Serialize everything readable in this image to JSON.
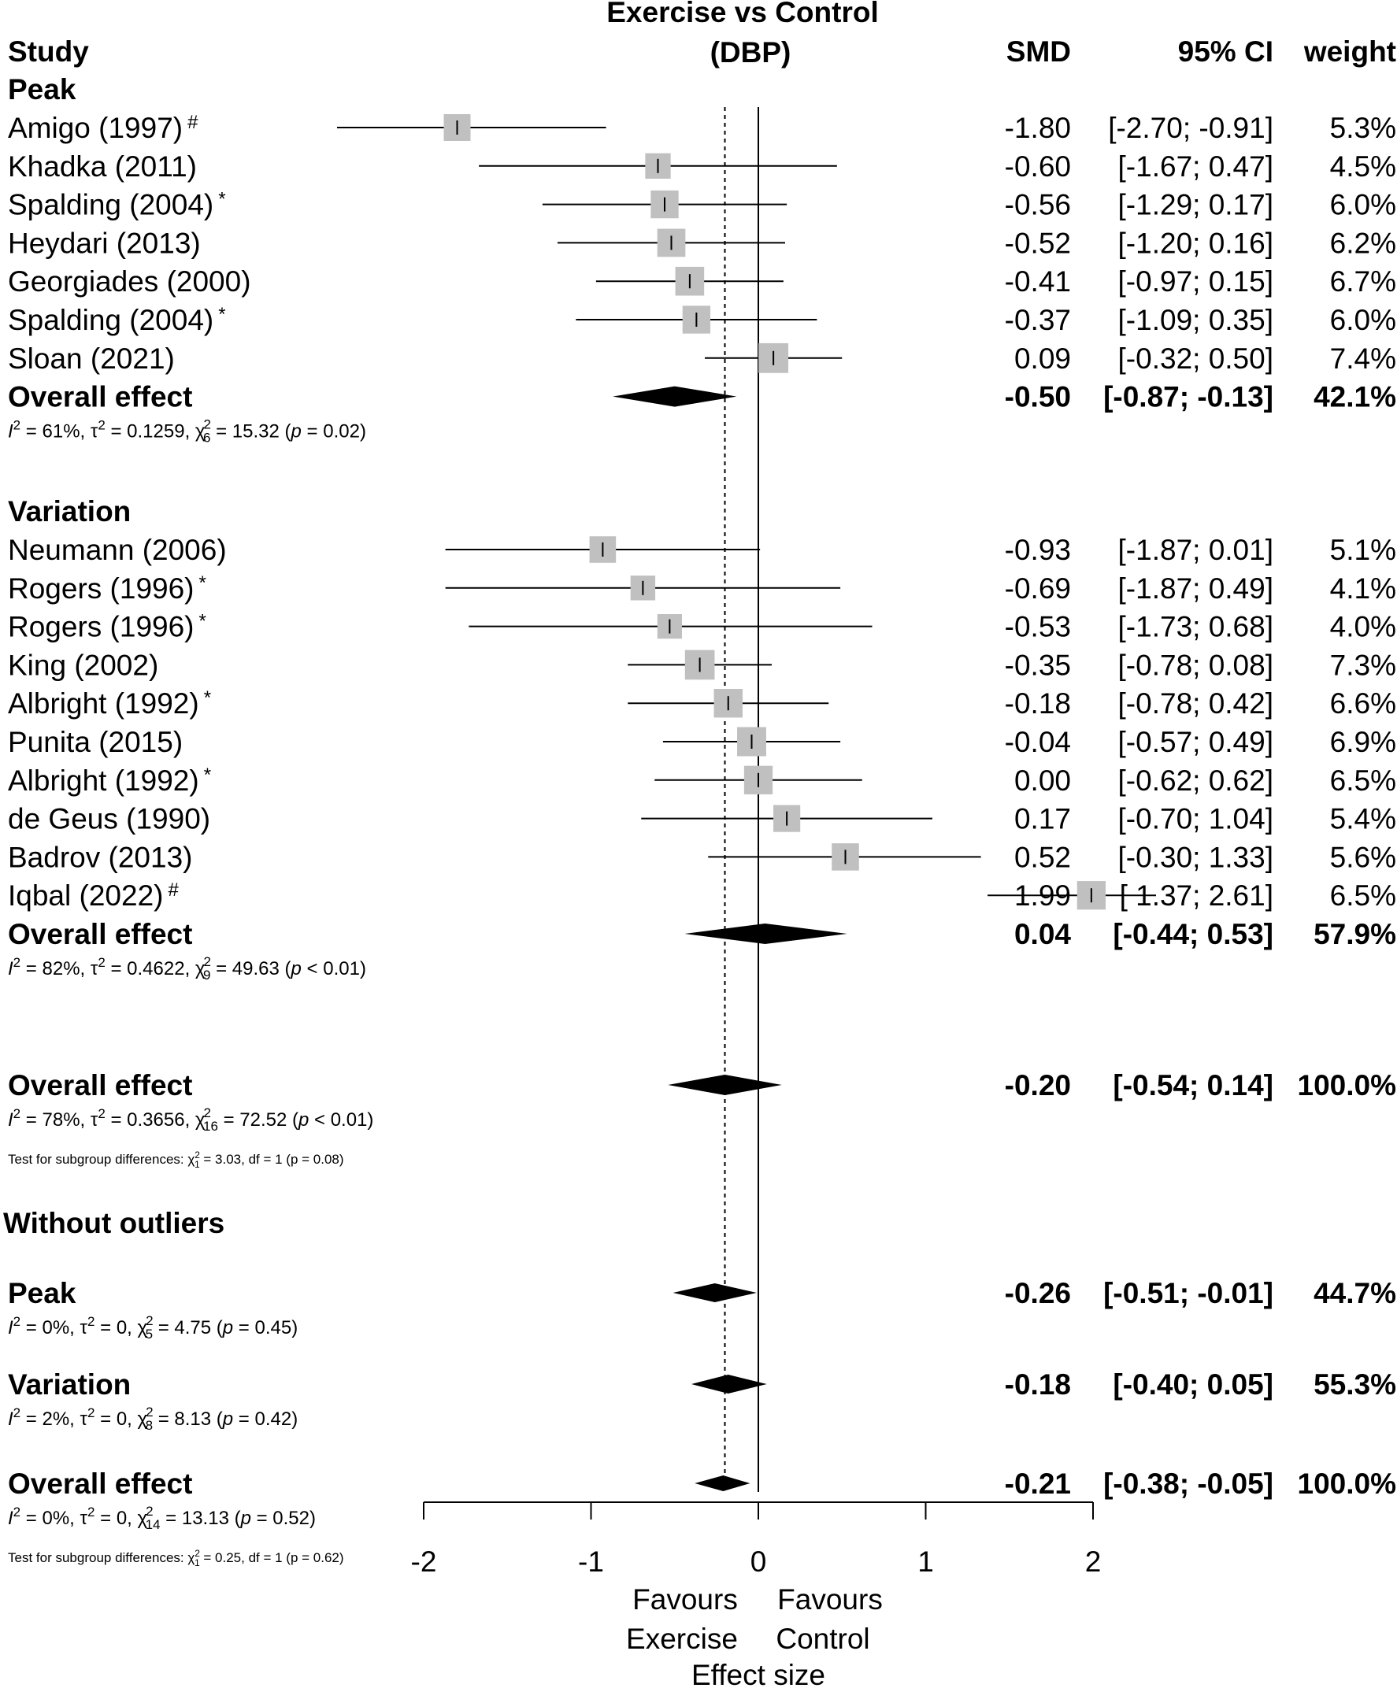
{
  "chart_data": {
    "type": "forest",
    "title": "Exercise vs Control (DBP)",
    "title_lines": [
      "Exercise vs Control",
      "(DBP)"
    ],
    "columns": {
      "study": "Study",
      "smd": "SMD",
      "ci": "95% CI",
      "weight": "weight"
    },
    "xlim": [
      -2,
      2
    ],
    "xticks": [
      "-2",
      "-1",
      "0",
      "1",
      "2"
    ],
    "xlabel": "Effect size",
    "favours_left": [
      "Favours",
      "Exercise"
    ],
    "favours_right": [
      "Favours",
      "Control"
    ],
    "reference_line": -0.2,
    "groups": [
      {
        "label": "Peak",
        "studies": [
          {
            "name": "Amigo (1997)",
            "mark": "#",
            "smd": -1.8,
            "lo": -2.7,
            "hi": -0.91,
            "smd_text": "-1.80",
            "ci_text": "[-2.70; -0.91]",
            "weight_text": "5.3%",
            "weight": 5.3
          },
          {
            "name": "Khadka (2011)",
            "mark": "",
            "smd": -0.6,
            "lo": -1.67,
            "hi": 0.47,
            "smd_text": "-0.60",
            "ci_text": "[-1.67; 0.47]",
            "weight_text": "4.5%",
            "weight": 4.5
          },
          {
            "name": "Spalding (2004)",
            "mark": "*",
            "smd": -0.56,
            "lo": -1.29,
            "hi": 0.17,
            "smd_text": "-0.56",
            "ci_text": "[-1.29; 0.17]",
            "weight_text": "6.0%",
            "weight": 6.0
          },
          {
            "name": "Heydari (2013)",
            "mark": "",
            "smd": -0.52,
            "lo": -1.2,
            "hi": 0.16,
            "smd_text": "-0.52",
            "ci_text": "[-1.20; 0.16]",
            "weight_text": "6.2%",
            "weight": 6.2
          },
          {
            "name": "Georgiades (2000)",
            "mark": "",
            "smd": -0.41,
            "lo": -0.97,
            "hi": 0.15,
            "smd_text": "-0.41",
            "ci_text": "[-0.97; 0.15]",
            "weight_text": "6.7%",
            "weight": 6.7
          },
          {
            "name": "Spalding (2004)",
            "mark": "*",
            "smd": -0.37,
            "lo": -1.09,
            "hi": 0.35,
            "smd_text": "-0.37",
            "ci_text": "[-1.09; 0.35]",
            "weight_text": "6.0%",
            "weight": 6.0
          },
          {
            "name": "Sloan (2021)",
            "mark": "",
            "smd": 0.09,
            "lo": -0.32,
            "hi": 0.5,
            "smd_text": "0.09",
            "ci_text": "[-0.32; 0.50]",
            "weight_text": "7.4%",
            "weight": 7.4
          }
        ],
        "overall": {
          "label": "Overall effect",
          "smd": -0.5,
          "lo": -0.87,
          "hi": -0.13,
          "smd_text": "-0.50",
          "ci_text": "[-0.87; -0.13]",
          "weight_text": "42.1%"
        },
        "heterogeneity": {
          "i2": "61%",
          "tau2": "0.1259",
          "chi_df": "6",
          "chi": "15.32",
          "p": "0.02",
          "p_op": "="
        }
      },
      {
        "label": "Variation",
        "studies": [
          {
            "name": "Neumann (2006)",
            "mark": "",
            "smd": -0.93,
            "lo": -1.87,
            "hi": 0.01,
            "smd_text": "-0.93",
            "ci_text": "[-1.87; 0.01]",
            "weight_text": "5.1%",
            "weight": 5.1
          },
          {
            "name": "Rogers (1996)",
            "mark": "*",
            "smd": -0.69,
            "lo": -1.87,
            "hi": 0.49,
            "smd_text": "-0.69",
            "ci_text": "[-1.87; 0.49]",
            "weight_text": "4.1%",
            "weight": 4.1
          },
          {
            "name": "Rogers (1996)",
            "mark": "*",
            "smd": -0.53,
            "lo": -1.73,
            "hi": 0.68,
            "smd_text": "-0.53",
            "ci_text": "[-1.73; 0.68]",
            "weight_text": "4.0%",
            "weight": 4.0
          },
          {
            "name": "King (2002)",
            "mark": "",
            "smd": -0.35,
            "lo": -0.78,
            "hi": 0.08,
            "smd_text": "-0.35",
            "ci_text": "[-0.78; 0.08]",
            "weight_text": "7.3%",
            "weight": 7.3
          },
          {
            "name": "Albright  (1992)",
            "mark": "*",
            "smd": -0.18,
            "lo": -0.78,
            "hi": 0.42,
            "smd_text": "-0.18",
            "ci_text": "[-0.78; 0.42]",
            "weight_text": "6.6%",
            "weight": 6.6
          },
          {
            "name": "Punita (2015)",
            "mark": "",
            "smd": -0.04,
            "lo": -0.57,
            "hi": 0.49,
            "smd_text": "-0.04",
            "ci_text": "[-0.57; 0.49]",
            "weight_text": "6.9%",
            "weight": 6.9
          },
          {
            "name": "Albright (1992)",
            "mark": "*",
            "smd": 0.0,
            "lo": -0.62,
            "hi": 0.62,
            "smd_text": "0.00",
            "ci_text": "[-0.62; 0.62]",
            "weight_text": "6.5%",
            "weight": 6.5
          },
          {
            "name": "de Geus (1990)",
            "mark": "",
            "smd": 0.17,
            "lo": -0.7,
            "hi": 1.04,
            "smd_text": "0.17",
            "ci_text": "[-0.70; 1.04]",
            "weight_text": "5.4%",
            "weight": 5.4
          },
          {
            "name": "Badrov (2013)",
            "mark": "",
            "smd": 0.52,
            "lo": -0.3,
            "hi": 1.33,
            "smd_text": "0.52",
            "ci_text": "[-0.30; 1.33]",
            "weight_text": "5.6%",
            "weight": 5.6
          },
          {
            "name": "Iqbal (2022)",
            "mark": "#",
            "smd": 1.99,
            "lo": 1.37,
            "hi": 2.61,
            "smd_text": "1.99",
            "ci_text": "[ 1.37; 2.61]",
            "weight_text": "6.5%",
            "weight": 6.5
          }
        ],
        "overall": {
          "label": "Overall effect",
          "smd": 0.04,
          "lo": -0.44,
          "hi": 0.53,
          "smd_text": "0.04",
          "ci_text": "[-0.44; 0.53]",
          "weight_text": "57.9%"
        },
        "heterogeneity": {
          "i2": "82%",
          "tau2": "0.4622",
          "chi_df": "9",
          "chi": "49.63",
          "p": "0.01",
          "p_op": "<"
        }
      }
    ],
    "overall": {
      "label": "Overall effect",
      "smd": -0.2,
      "lo": -0.54,
      "hi": 0.14,
      "smd_text": "-0.20",
      "ci_text": "[-0.54; 0.14]",
      "weight_text": "100.0%",
      "heterogeneity": {
        "i2": "78%",
        "tau2": "0.3656",
        "chi_df": "16",
        "chi": "72.52",
        "p": "0.01",
        "p_op": "<"
      },
      "subgroup_test": {
        "chi_df": "1",
        "chi": "3.03",
        "df": "1",
        "p": "0.08",
        "p_op": "="
      }
    },
    "without_outliers": {
      "label": "Without outliers",
      "groups": [
        {
          "label": "Peak",
          "smd": -0.26,
          "lo": -0.51,
          "hi": -0.01,
          "smd_text": "-0.26",
          "ci_text": "[-0.51; -0.01]",
          "weight_text": "44.7%",
          "heterogeneity": {
            "i2": "0%",
            "tau2": "0",
            "chi_df": "5",
            "chi": "4.75",
            "p": "0.45",
            "p_op": "="
          }
        },
        {
          "label": "Variation",
          "smd": -0.18,
          "lo": -0.4,
          "hi": 0.05,
          "smd_text": "-0.18",
          "ci_text": "[-0.40; 0.05]",
          "weight_text": "55.3%",
          "heterogeneity": {
            "i2": "2%",
            "tau2": "0",
            "chi_df": "8",
            "chi": "8.13",
            "p": "0.42",
            "p_op": "="
          }
        }
      ],
      "overall": {
        "label": "Overall effect",
        "smd": -0.21,
        "lo": -0.38,
        "hi": -0.05,
        "smd_text": "-0.21",
        "ci_text": "[-0.38; -0.05]",
        "weight_text": "100.0%",
        "heterogeneity": {
          "i2": "0%",
          "tau2": "0",
          "chi_df": "14",
          "chi": "13.13",
          "p": "0.52",
          "p_op": "="
        },
        "subgroup_test": {
          "chi_df": "1",
          "chi": "0.25",
          "df": "1",
          "p": "0.62",
          "p_op": "="
        }
      }
    },
    "colors": {
      "square": "#c0c0c0",
      "line": "#000000",
      "diamond": "#000000"
    }
  }
}
